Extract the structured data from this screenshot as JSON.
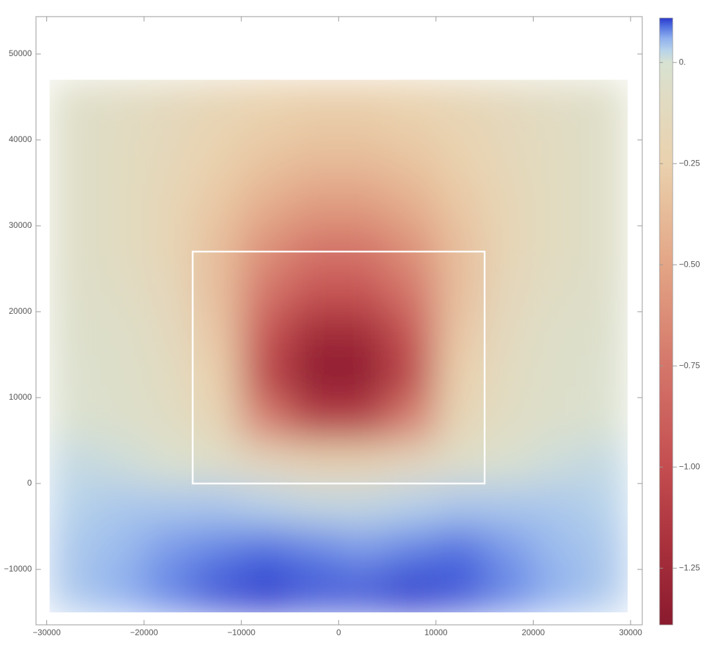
{
  "chart_data": {
    "type": "heatmap",
    "x_edges": [
      -29700,
      -25000,
      -20000,
      -15000,
      -10000,
      -5000,
      0,
      5000,
      10000,
      15000,
      20000,
      25000,
      29700
    ],
    "y_edges": [
      -15000,
      -10000,
      -5000,
      0,
      5000,
      10000,
      15000,
      20000,
      25000,
      30000,
      35000,
      40000,
      45000,
      47000
    ],
    "values": [
      [
        0.04,
        0.06,
        0.08,
        0.1,
        0.11,
        0.1,
        0.1,
        0.11,
        0.1,
        0.08,
        0.06,
        0.04
      ],
      [
        0.04,
        0.05,
        0.07,
        0.08,
        0.09,
        0.08,
        0.07,
        0.08,
        0.09,
        0.07,
        0.05,
        0.04
      ],
      [
        0.03,
        0.04,
        0.04,
        0.04,
        0.03,
        0.02,
        0.02,
        0.03,
        0.04,
        0.04,
        0.04,
        0.03
      ],
      [
        0.02,
        0.01,
        -0.02,
        -0.06,
        -0.15,
        -0.22,
        -0.22,
        -0.15,
        -0.06,
        -0.02,
        0.01,
        0.02
      ],
      [
        -0.02,
        -0.04,
        -0.08,
        -0.18,
        -0.7,
        -1.1,
        -1.1,
        -0.7,
        -0.18,
        -0.08,
        -0.04,
        -0.02
      ],
      [
        -0.03,
        -0.05,
        -0.1,
        -0.25,
        -1.05,
        -1.35,
        -1.35,
        -1.05,
        -0.25,
        -0.1,
        -0.05,
        -0.03
      ],
      [
        -0.04,
        -0.06,
        -0.12,
        -0.3,
        -0.95,
        -1.25,
        -1.25,
        -0.95,
        -0.3,
        -0.12,
        -0.06,
        -0.04
      ],
      [
        -0.05,
        -0.08,
        -0.15,
        -0.35,
        -0.75,
        -0.95,
        -0.95,
        -0.75,
        -0.35,
        -0.15,
        -0.08,
        -0.05
      ],
      [
        -0.06,
        -0.1,
        -0.18,
        -0.35,
        -0.6,
        -0.75,
        -0.75,
        -0.6,
        -0.35,
        -0.18,
        -0.1,
        -0.06
      ],
      [
        -0.06,
        -0.1,
        -0.18,
        -0.3,
        -0.45,
        -0.55,
        -0.55,
        -0.45,
        -0.3,
        -0.18,
        -0.1,
        -0.06
      ],
      [
        -0.06,
        -0.1,
        -0.16,
        -0.25,
        -0.33,
        -0.38,
        -0.38,
        -0.33,
        -0.25,
        -0.16,
        -0.1,
        -0.06
      ],
      [
        -0.06,
        -0.09,
        -0.14,
        -0.2,
        -0.25,
        -0.28,
        -0.28,
        -0.25,
        -0.2,
        -0.14,
        -0.09,
        -0.06
      ],
      [
        -0.06,
        -0.08,
        -0.12,
        -0.17,
        -0.21,
        -0.23,
        -0.23,
        -0.21,
        -0.17,
        -0.12,
        -0.08,
        -0.06
      ]
    ],
    "xlim": [
      -31100,
      31200
    ],
    "ylim": [
      -16450,
      54350
    ],
    "xticks": [
      {
        "value": -30000,
        "label": "−30000"
      },
      {
        "value": -20000,
        "label": "−20000"
      },
      {
        "value": -10000,
        "label": "−10000"
      },
      0,
      10000,
      20000,
      30000
    ],
    "yticks": [
      {
        "value": -10000,
        "label": "−10000"
      },
      0,
      10000,
      20000,
      30000,
      40000,
      50000
    ],
    "box": {
      "x": [
        -15000,
        15000
      ],
      "y": [
        0,
        27000
      ],
      "color": "#ffffff"
    },
    "colorscale": [
      [
        -1.39,
        "#8a1a2e"
      ],
      [
        -1.2,
        "#a8303c"
      ],
      [
        -1.0,
        "#c44d50"
      ],
      [
        -0.75,
        "#d4766a"
      ],
      [
        -0.5,
        "#e3a585"
      ],
      [
        -0.25,
        "#ead1ad"
      ],
      [
        -0.08,
        "#e0dcc4"
      ],
      [
        0,
        "#d8e2d2"
      ],
      [
        0.03,
        "#b7d3ea"
      ],
      [
        0.06,
        "#8fb0ee"
      ],
      [
        0.09,
        "#4f6ee0"
      ],
      [
        0.11,
        "#2a38cc"
      ]
    ],
    "clim": [
      -1.39,
      0.11
    ],
    "cticks": [
      {
        "value": 0,
        "label": "0."
      },
      {
        "value": -0.25,
        "label": "−0.25"
      },
      {
        "value": -0.5,
        "label": "−0.50"
      },
      {
        "value": -0.75,
        "label": "−0.75"
      },
      {
        "value": -1,
        "label": "−1.00"
      },
      {
        "value": -1.25,
        "label": "−1.25"
      }
    ]
  }
}
